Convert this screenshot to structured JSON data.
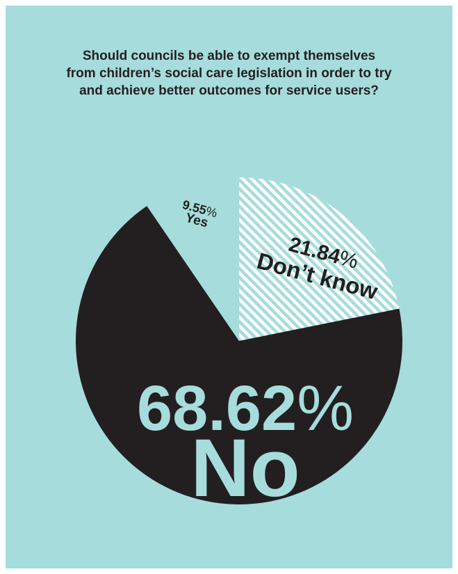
{
  "colors": {
    "background": "#a6dcdc",
    "no": "#231f20",
    "yes": "#a6dcdc",
    "dont_know_hatch": "#ffffff",
    "dont_know_base": "#a6dcdc",
    "label_dark": "#231f20",
    "label_light": "#a6dcdc"
  },
  "chart_data": {
    "type": "pie",
    "title_lines": [
      "Should councils be able to exempt themselves",
      "from children’s social care legislation in order to try",
      "and achieve better outcomes for service users?"
    ],
    "slices": [
      {
        "label": "Don’t know",
        "value": 21.84,
        "value_text": "21.84",
        "pattern": "hatched"
      },
      {
        "label": "No",
        "value": 68.62,
        "value_text": "68.62",
        "pattern": "solid"
      },
      {
        "label": "Yes",
        "value": 9.55,
        "value_text": "9.55",
        "pattern": "solid"
      }
    ],
    "unit": "%",
    "start": "12 o'clock, clockwise"
  }
}
